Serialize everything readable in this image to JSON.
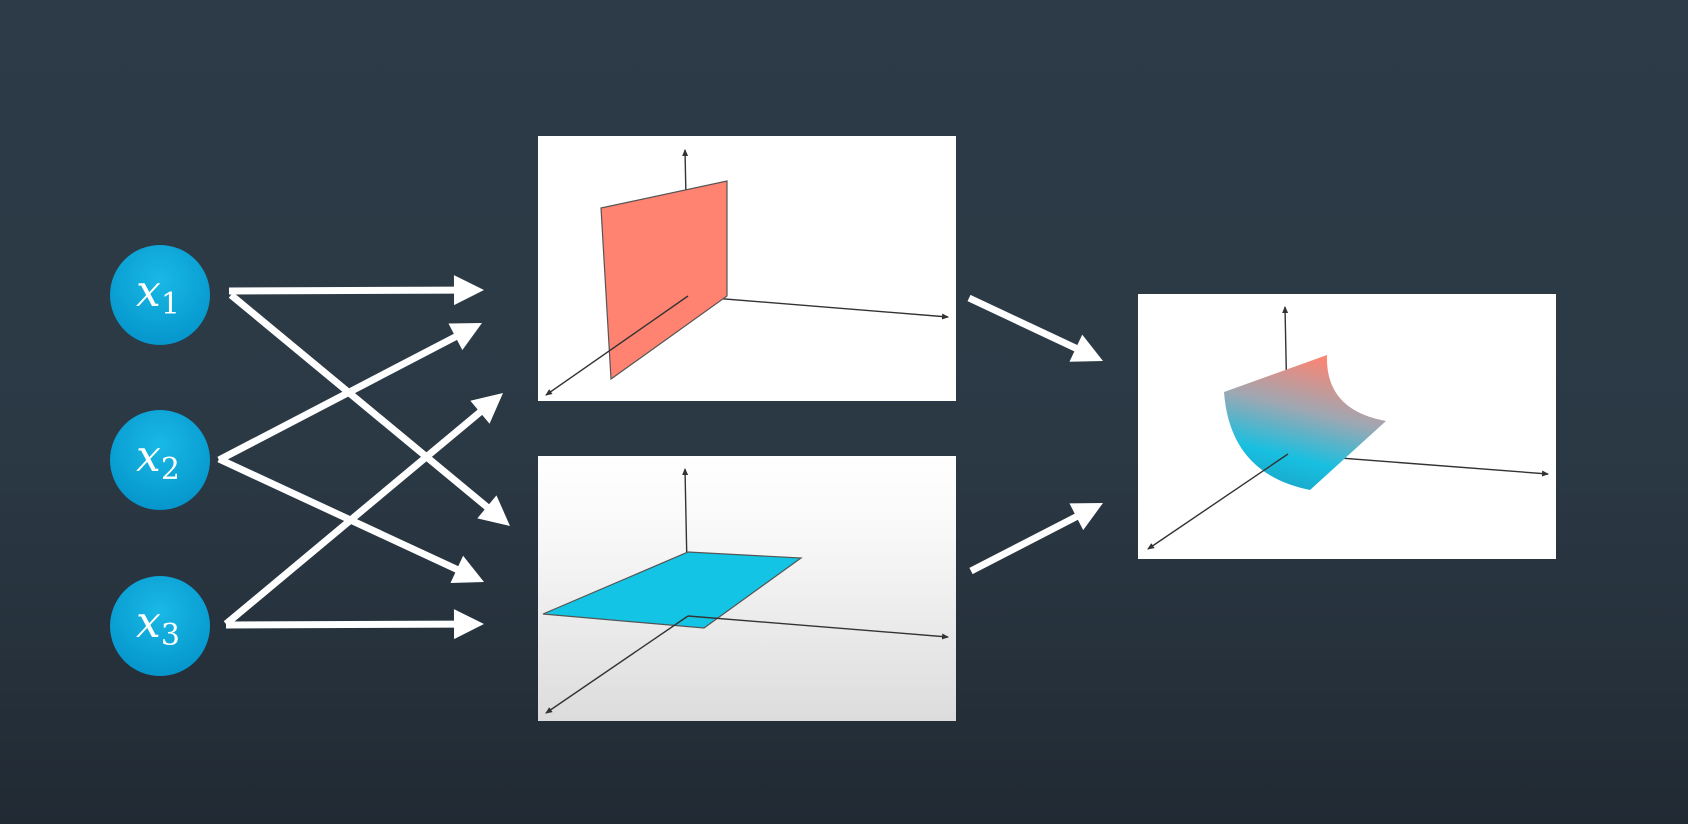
{
  "inputs": [
    {
      "var": "x",
      "sub": "1"
    },
    {
      "var": "x",
      "sub": "2"
    },
    {
      "var": "x",
      "sub": "3"
    }
  ],
  "panels": [
    {
      "surface": "vertical-plane",
      "color": "#ff8370"
    },
    {
      "surface": "horizontal-plane",
      "color": "#14c4e4"
    },
    {
      "surface": "curved-surface",
      "colors": [
        "#ff8370",
        "#14c4e4"
      ]
    }
  ],
  "colors": {
    "background": "#2b3945",
    "node": "#0aa6d8",
    "arrow": "#ffffff",
    "axis": "#333333"
  }
}
